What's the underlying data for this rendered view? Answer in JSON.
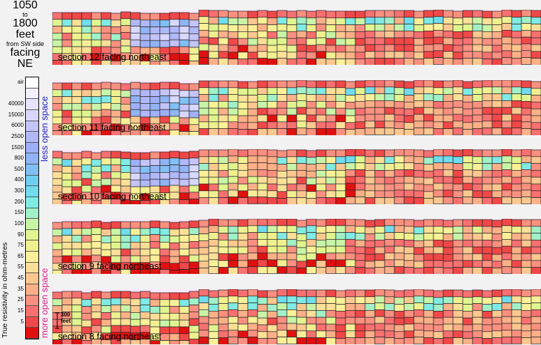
{
  "header": {
    "from_value": "1050",
    "to_word": "to",
    "to_value": "1800",
    "unit": "feet",
    "reference": "from SW side",
    "facing_word": "facing",
    "direction": "NE"
  },
  "legend": {
    "axis_label": "True resistivity in ohm-metres",
    "less_label": "less open space",
    "more_label": "more open space",
    "less_color": "#2020c8",
    "more_color": "#e0208a",
    "entries": [
      {
        "label": "air",
        "color": "#ffffff"
      },
      {
        "label": "",
        "color": "#f4f0ff"
      },
      {
        "label": "40000",
        "color": "#e8e4ff"
      },
      {
        "label": "15000",
        "color": "#d8d8ff"
      },
      {
        "label": "6000",
        "color": "#c4c4f8"
      },
      {
        "label": "2500",
        "color": "#b0b8f8"
      },
      {
        "label": "1500",
        "color": "#a0b0f8"
      },
      {
        "label": "800",
        "color": "#90b4f4"
      },
      {
        "label": "500",
        "color": "#80c0f4"
      },
      {
        "label": "400",
        "color": "#70cef0"
      },
      {
        "label": "300",
        "color": "#70dcee"
      },
      {
        "label": "200",
        "color": "#80eae4"
      },
      {
        "label": "150",
        "color": "#a0f0c8"
      },
      {
        "label": "100",
        "color": "#c8f4a8"
      },
      {
        "label": "90",
        "color": "#e0f590"
      },
      {
        "label": "75",
        "color": "#f0f090"
      },
      {
        "label": "65",
        "color": "#faf098"
      },
      {
        "label": "55",
        "color": "#fce098"
      },
      {
        "label": "45",
        "color": "#fcc890"
      },
      {
        "label": "35",
        "color": "#fcb088"
      },
      {
        "label": "25",
        "color": "#fa9080"
      },
      {
        "label": "15",
        "color": "#f87070"
      },
      {
        "label": "5",
        "color": "#f04848"
      },
      {
        "label": "",
        "color": "#e01010"
      }
    ]
  },
  "scale_bar": {
    "line1": "300",
    "line2": "feet"
  },
  "chart_data": {
    "type": "heatmap",
    "cols": 50,
    "rows": 7,
    "panels": [
      {
        "label": "section 12 facing northeast",
        "seed": 12
      },
      {
        "label": "section 11 facing northeast",
        "seed": 11
      },
      {
        "label": "section 10 facing northeast",
        "seed": 10
      },
      {
        "label": "section 9 facing northeast",
        "seed": 9
      },
      {
        "label": "section 8 facing northeast",
        "seed": 8
      }
    ]
  }
}
